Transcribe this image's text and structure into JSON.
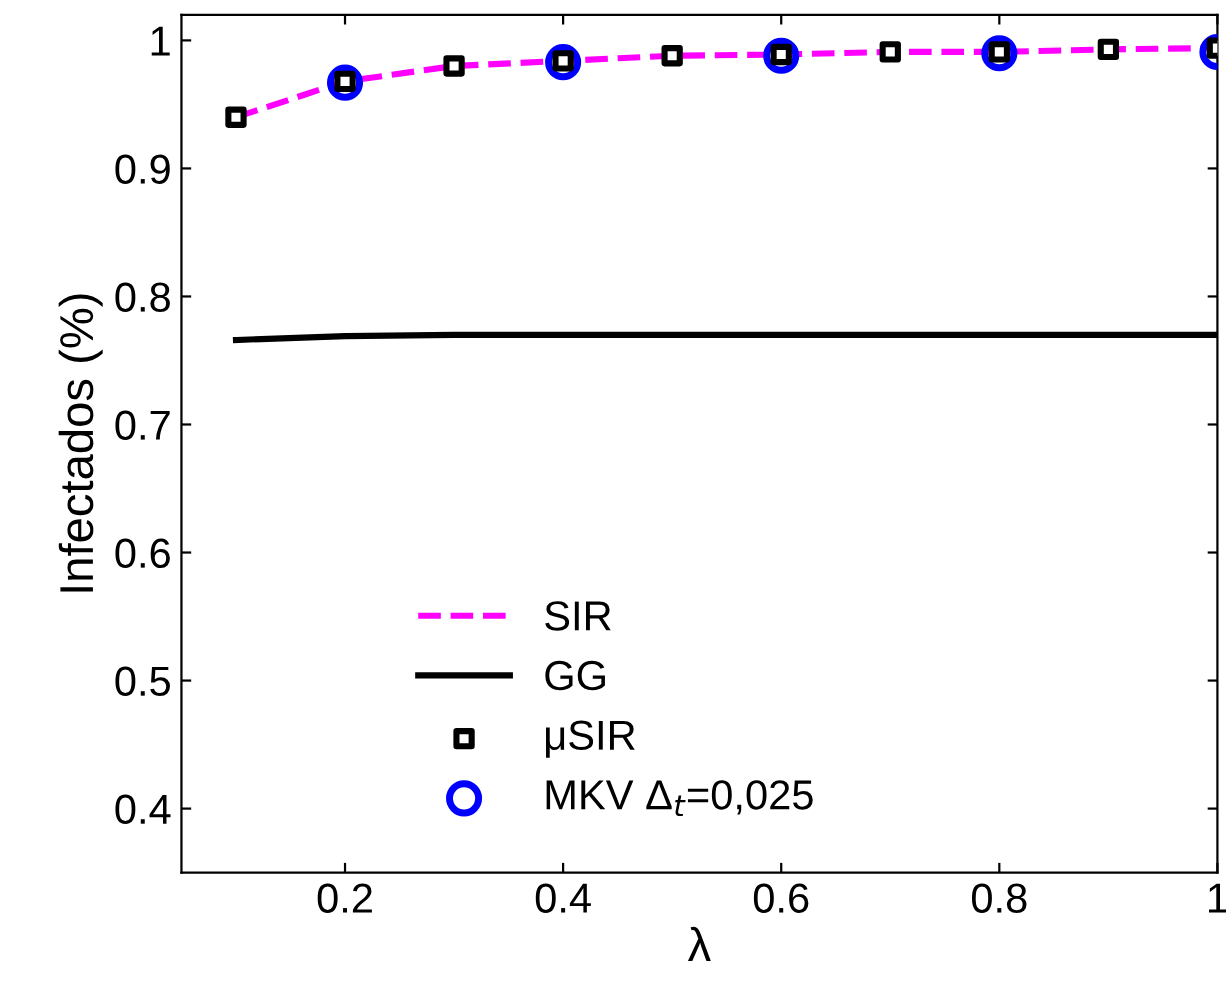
{
  "chart_data": {
    "type": "line",
    "xlabel": "λ",
    "ylabel": "Infectados (%)",
    "xlim": [
      0.05,
      1.0
    ],
    "ylim": [
      0.35,
      1.02
    ],
    "xticks": [
      0.2,
      0.4,
      0.6,
      0.8,
      1
    ],
    "yticks": [
      0.4,
      0.5,
      0.6,
      0.7,
      0.8,
      0.9,
      1
    ],
    "legend": "bottom",
    "grid": false,
    "series": [
      {
        "name": "SIR",
        "color": "#ff00ff",
        "line_style": "dashed",
        "marker": "none",
        "x": [
          0.1,
          0.2,
          0.3,
          0.4,
          0.5,
          0.6,
          0.7,
          0.8,
          0.9,
          1.0
        ],
        "values": [
          0.94,
          0.968,
          0.98,
          0.984,
          0.988,
          0.989,
          0.991,
          0.991,
          0.993,
          0.994
        ]
      },
      {
        "name": "GG",
        "color": "#000000",
        "line_style": "solid",
        "marker": "none",
        "x": [
          0.1,
          0.2,
          0.3,
          0.4,
          0.5,
          0.6,
          0.7,
          0.8,
          0.9,
          1.0
        ],
        "values": [
          0.766,
          0.769,
          0.77,
          0.77,
          0.77,
          0.77,
          0.77,
          0.77,
          0.77,
          0.77
        ]
      },
      {
        "name": "μSIR",
        "type": "scatter",
        "color": "#000000",
        "marker": "square",
        "x": [
          0.1,
          0.2,
          0.3,
          0.4,
          0.5,
          0.6,
          0.7,
          0.8,
          0.9,
          1.0
        ],
        "values": [
          0.94,
          0.968,
          0.98,
          0.984,
          0.988,
          0.989,
          0.991,
          0.991,
          0.993,
          0.994
        ]
      },
      {
        "name": "MKV Δ$_{t}$=0,025",
        "type": "scatter",
        "color": "#0000ff",
        "marker": "circle",
        "x": [
          0.2,
          0.4,
          0.6,
          0.8,
          1.0
        ],
        "values": [
          0.967,
          0.983,
          0.988,
          0.99,
          0.991
        ]
      }
    ]
  }
}
